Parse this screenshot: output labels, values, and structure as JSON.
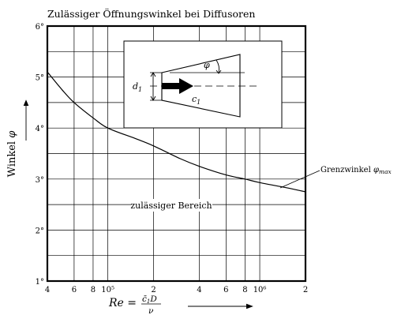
{
  "chart_data": {
    "type": "line",
    "title": "Zulässiger Öffnungswinkel bei Diffusoren",
    "ylabel": "Winkel φ",
    "xlabel": "Re = c̄₁D / ν",
    "xscale": "log",
    "xlim": [
      40000,
      2000000
    ],
    "ylim": [
      1,
      6
    ],
    "grid": true,
    "x_ticks": [
      {
        "value": 40000,
        "label": "4"
      },
      {
        "value": 60000,
        "label": "6"
      },
      {
        "value": 80000,
        "label": "8"
      },
      {
        "value": 100000,
        "label": "10⁵"
      },
      {
        "value": 200000,
        "label": "2"
      },
      {
        "value": 400000,
        "label": "4"
      },
      {
        "value": 600000,
        "label": "6"
      },
      {
        "value": 800000,
        "label": "8"
      },
      {
        "value": 1000000,
        "label": "10⁶"
      },
      {
        "value": 2000000,
        "label": "2"
      }
    ],
    "y_ticks": [
      {
        "value": 1,
        "label": "1°"
      },
      {
        "value": 2,
        "label": "2°"
      },
      {
        "value": 3,
        "label": "3°"
      },
      {
        "value": 4,
        "label": "4°"
      },
      {
        "value": 5,
        "label": "5°"
      },
      {
        "value": 6,
        "label": "6°"
      }
    ],
    "series": [
      {
        "name": "Grenzwinkel φmax",
        "x": [
          40000,
          50000,
          60000,
          80000,
          100000,
          150000,
          200000,
          300000,
          400000,
          600000,
          800000,
          1000000,
          1500000,
          2000000
        ],
        "y": [
          5.1,
          4.75,
          4.5,
          4.2,
          4.0,
          3.8,
          3.65,
          3.4,
          3.25,
          3.08,
          3.0,
          2.93,
          2.83,
          2.75
        ]
      }
    ],
    "annotations": {
      "region_label": "zulässiger Bereich",
      "curve_label_text": "Grenzwinkel ",
      "curve_label_symbol": "φ",
      "curve_label_sub": "max"
    },
    "inset": {
      "d_label": "d",
      "d_sub": "1",
      "c_label": "c",
      "c_sub": "1",
      "angle_label": "φ"
    },
    "axis_labels": {
      "y_text": "Winkel ",
      "y_symbol": "φ",
      "x_re": "Re",
      "x_equals": " = ",
      "x_num_c": "c̄",
      "x_num_sub": "1",
      "x_num_d": "D",
      "x_den": "ν"
    }
  }
}
